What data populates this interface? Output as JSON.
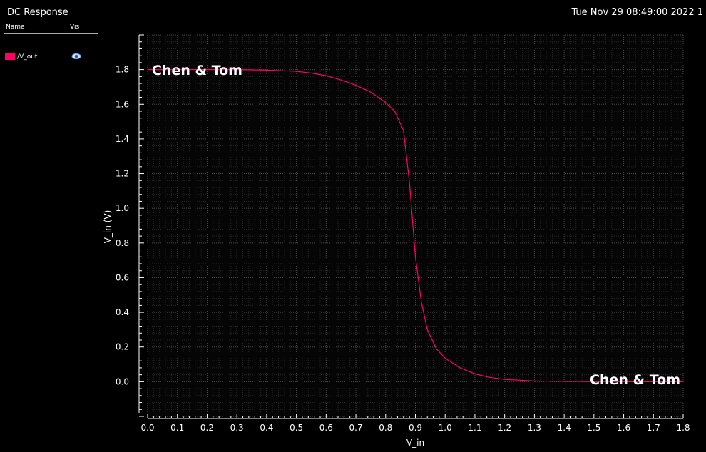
{
  "window": {
    "title": "DC Response",
    "datetime": "Tue Nov 29 08:49:00 2022  1"
  },
  "legend": {
    "name_header": "Name",
    "vis_header": "Vis",
    "signals": [
      {
        "name": "/V_out",
        "color": "#ff0066",
        "visible_icon": "eye-icon"
      }
    ]
  },
  "watermarks": [
    "Chen & Tom",
    "Chen & Tom"
  ],
  "colors": {
    "background": "#000000",
    "trace": "#ff0066",
    "grid": "#3a3a3a",
    "axis": "#ffffff"
  },
  "chart_data": {
    "type": "line",
    "title": "DC Response",
    "xlabel": "V_in",
    "ylabel": "V_in (V)",
    "xlim": [
      0.0,
      1.8
    ],
    "ylim": [
      -0.2,
      2.0
    ],
    "grid": true,
    "x_ticks": [
      "0.0",
      "0.1",
      "0.2",
      "0.3",
      "0.4",
      "0.5",
      "0.6",
      "0.7",
      "0.8",
      "0.9",
      "1.0",
      "1.1",
      "1.2",
      "1.3",
      "1.4",
      "1.5",
      "1.6",
      "1.7",
      "1.8"
    ],
    "y_ticks": [
      "0.0",
      "0.2",
      "0.4",
      "0.6",
      "0.8",
      "1.0",
      "1.2",
      "1.4",
      "1.6",
      "1.8"
    ],
    "series": [
      {
        "name": "/V_out",
        "x": [
          0.0,
          0.1,
          0.2,
          0.3,
          0.4,
          0.5,
          0.55,
          0.6,
          0.65,
          0.7,
          0.75,
          0.8,
          0.83,
          0.86,
          0.88,
          0.9,
          0.92,
          0.94,
          0.97,
          1.0,
          1.05,
          1.1,
          1.15,
          1.2,
          1.3,
          1.4,
          1.5,
          1.6,
          1.7,
          1.8
        ],
        "values": [
          1.8,
          1.8,
          1.8,
          1.8,
          1.797,
          1.79,
          1.78,
          1.765,
          1.74,
          1.71,
          1.67,
          1.61,
          1.56,
          1.45,
          1.15,
          0.72,
          0.46,
          0.3,
          0.19,
          0.135,
          0.08,
          0.045,
          0.025,
          0.013,
          0.004,
          0.002,
          0.001,
          0.0,
          0.0,
          0.0
        ]
      }
    ]
  }
}
